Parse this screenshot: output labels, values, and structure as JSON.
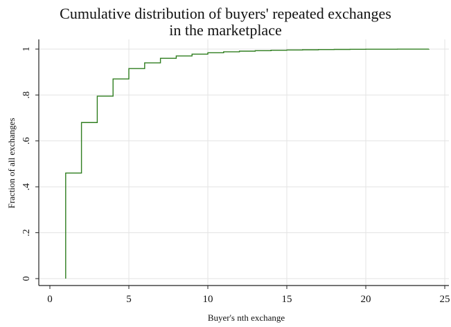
{
  "chart_data": {
    "type": "line",
    "step": true,
    "title_line1": "Cumulative distribution of buyers' repeated exchanges",
    "title_line2": "in the marketplace",
    "xlabel": "Buyer's nth exchange",
    "ylabel": "Fraction of all exchanges",
    "xlim": [
      0,
      25
    ],
    "ylim": [
      0,
      1
    ],
    "xticks": [
      0,
      5,
      10,
      15,
      20,
      25
    ],
    "yticks": [
      0,
      0.2,
      0.4,
      0.6,
      0.8,
      1
    ],
    "ytick_labels": [
      "0",
      ".2",
      ".4",
      ".6",
      ".8",
      "1"
    ],
    "grid": true,
    "line_color": "#2e7d1e",
    "series": [
      {
        "x": [
          1,
          2,
          3,
          4,
          5,
          6,
          7,
          8,
          9,
          10,
          11,
          12,
          13,
          14,
          15,
          16,
          17,
          18,
          19,
          20,
          21,
          22,
          23,
          24
        ],
        "values": [
          0.46,
          0.68,
          0.795,
          0.87,
          0.915,
          0.94,
          0.96,
          0.97,
          0.978,
          0.984,
          0.988,
          0.991,
          0.993,
          0.995,
          0.996,
          0.997,
          0.998,
          0.9985,
          0.999,
          0.9993,
          0.9995,
          0.9997,
          0.9999,
          1.0
        ]
      }
    ]
  }
}
